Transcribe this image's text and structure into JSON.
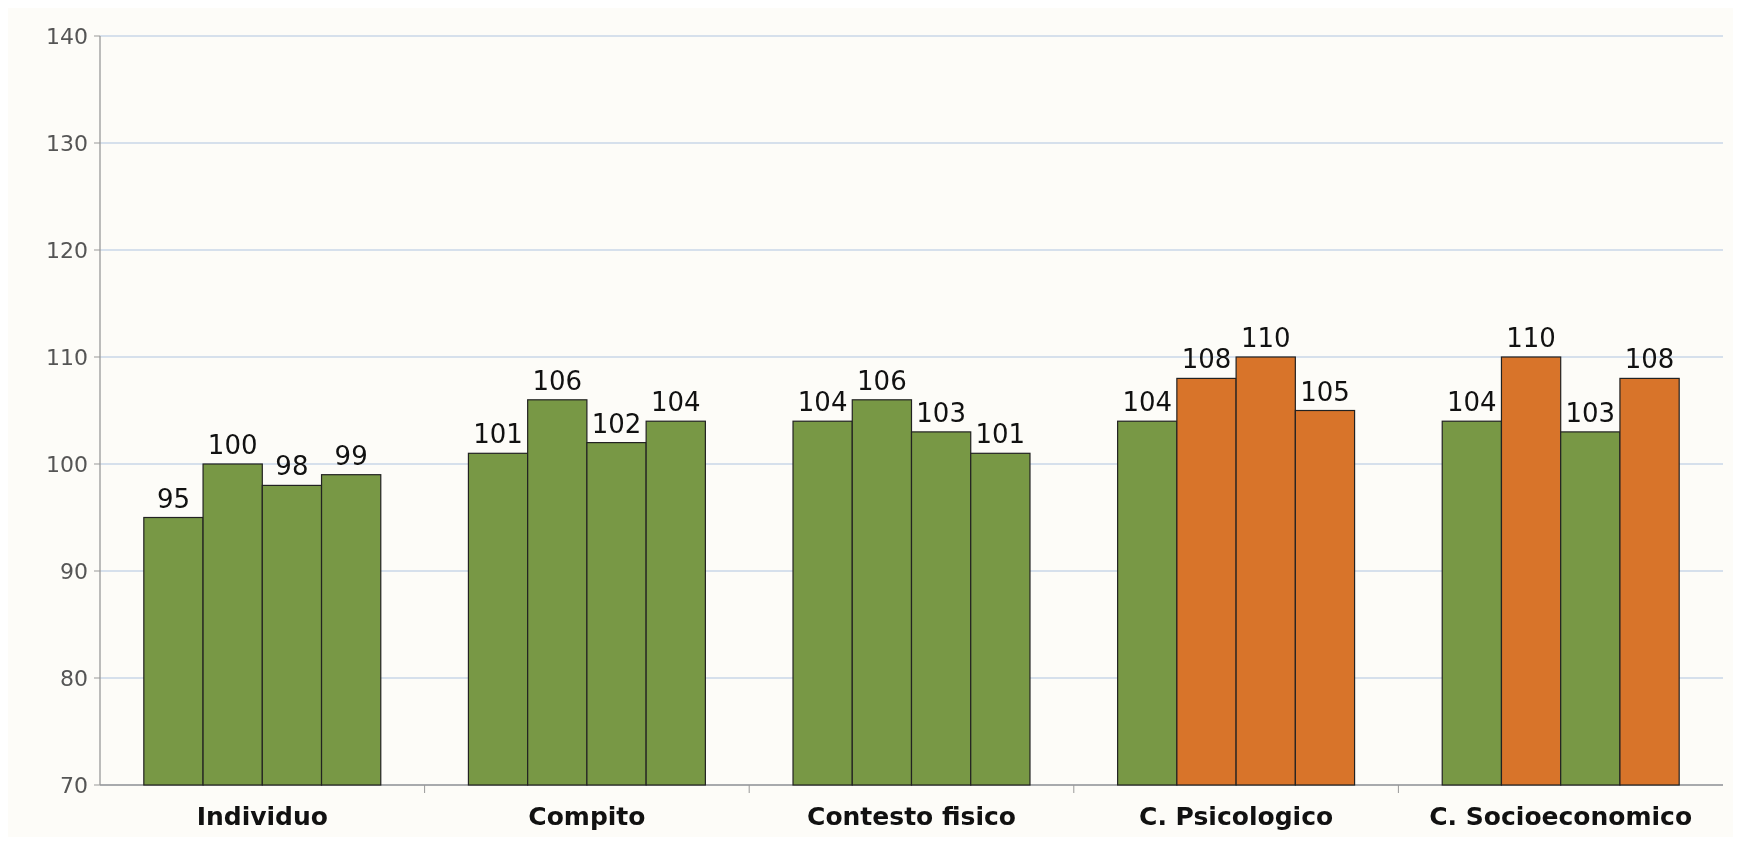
{
  "chart_data": {
    "type": "bar",
    "categories": [
      "Individuo",
      "Compito",
      "Contesto fisico",
      "C. Psicologico",
      "C. Socioeconomico"
    ],
    "series": [
      {
        "colors": [
          "#789845",
          "#789845",
          "#789845",
          "#789845",
          "#789845"
        ],
        "values": [
          95,
          101,
          104,
          104,
          104
        ]
      },
      {
        "colors": [
          "#789845",
          "#789845",
          "#789845",
          "#d8742a",
          "#d8742a"
        ],
        "values": [
          100,
          106,
          106,
          108,
          110
        ]
      },
      {
        "colors": [
          "#789845",
          "#789845",
          "#789845",
          "#d8742a",
          "#789845"
        ],
        "values": [
          98,
          102,
          103,
          110,
          103
        ]
      },
      {
        "colors": [
          "#789845",
          "#789845",
          "#789845",
          "#d8742a",
          "#d8742a"
        ],
        "values": [
          99,
          104,
          101,
          105,
          108
        ]
      }
    ],
    "ylim": [
      70,
      140
    ],
    "yticks": [
      70,
      80,
      90,
      100,
      110,
      120,
      130,
      140
    ],
    "grid": "y",
    "data_labels": true
  }
}
